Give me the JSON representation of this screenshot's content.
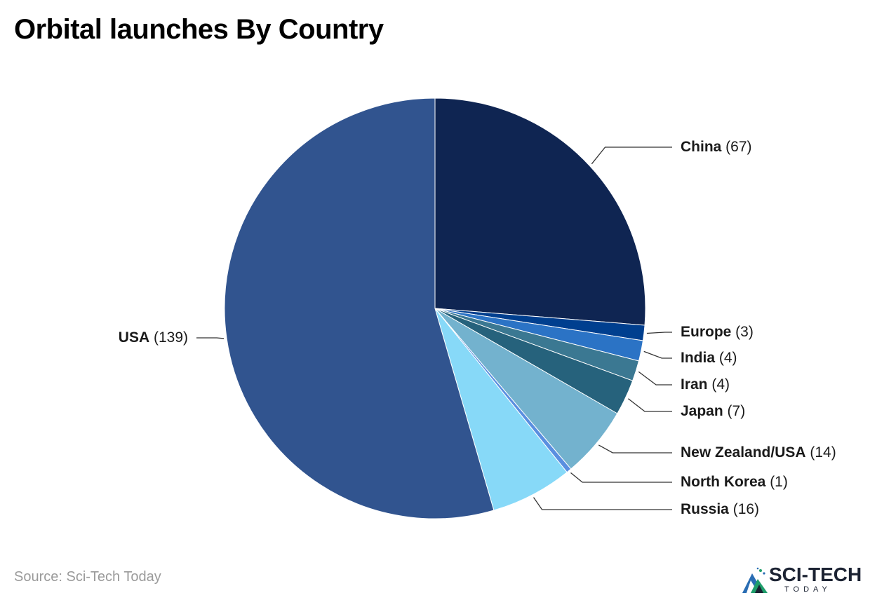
{
  "title": "Orbital launches By Country",
  "source": "Source: Sci-Tech Today",
  "logo": {
    "word": "SCI-TECH",
    "sub": "TODAY",
    "icon": "mountain-logo-icon"
  },
  "chart_data": {
    "type": "pie",
    "slices": [
      {
        "label": "China",
        "value": 67,
        "color": "#0f2552"
      },
      {
        "label": "Europe",
        "value": 3,
        "color": "#003f8f"
      },
      {
        "label": "India",
        "value": 4,
        "color": "#2b73c5"
      },
      {
        "label": "Iran",
        "value": 4,
        "color": "#3b7892"
      },
      {
        "label": "Japan",
        "value": 7,
        "color": "#26627c"
      },
      {
        "label": "New Zealand/USA",
        "value": 14,
        "color": "#73b2ce"
      },
      {
        "label": "North Korea",
        "value": 1,
        "color": "#5a8fe0"
      },
      {
        "label": "Russia",
        "value": 16,
        "color": "#87d9f8"
      },
      {
        "label": "USA",
        "value": 139,
        "color": "#31548f"
      }
    ]
  }
}
